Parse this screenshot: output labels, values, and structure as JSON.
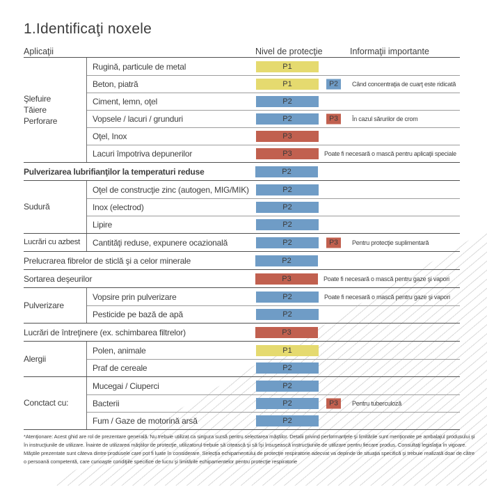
{
  "title": "1.Identificaţi noxele",
  "columns": {
    "applications": "Aplicaţii",
    "protection": "Nivel de protecţie",
    "info": "Informaţii importante"
  },
  "colors": {
    "p1": "#e5da6f",
    "p2": "#6f9cc6",
    "p3": "#c1604f"
  },
  "sections": [
    {
      "group": "Şlefuire\nTăiere\nPerforare",
      "rows": [
        {
          "label": "Rugină, particule de metal",
          "level": "P1"
        },
        {
          "label": "Beton, piatră",
          "level": "P1",
          "level2": "P2",
          "note": "Când concentraţia de cuarţ este ridicată"
        },
        {
          "label": "Ciment, lemn, oţel",
          "level": "P2"
        },
        {
          "label": "Vopsele / lacuri / grunduri",
          "level": "P2",
          "level2": "P3",
          "note": "În cazul sărurilor de crom"
        },
        {
          "label": "Oţel, Inox",
          "level": "P3"
        },
        {
          "label": "Lacuri împotriva depunerilor",
          "level": "P3",
          "note": "Poate fi necesară o mască pentru aplicaţii speciale"
        }
      ]
    },
    {
      "rows": [
        {
          "label": "Pulverizarea lubrifianţilor la temperaturi reduse",
          "level": "P2"
        }
      ]
    },
    {
      "group": "Sudură",
      "rows": [
        {
          "label": "Oţel de construcţie zinc (autogen, MIG/MIK)",
          "level": "P2"
        },
        {
          "label": "Inox (electrod)",
          "level": "P2"
        },
        {
          "label": "Lipire",
          "level": "P2"
        }
      ]
    },
    {
      "group": "Lucrări cu azbest",
      "rows": [
        {
          "label": "Cantităţi reduse, expunere ocazională",
          "level": "P2",
          "level2": "P3",
          "note": "Pentru protecţie suplimentară"
        }
      ]
    },
    {
      "rows": [
        {
          "label": "Prelucrarea fibrelor de sticlă şi a celor minerale",
          "level": "P2"
        }
      ]
    },
    {
      "rows": [
        {
          "label": "Sortarea deşeurilor",
          "level": "P3",
          "note": "Poate fi necesară o mască pentru gaze şi vapori"
        }
      ]
    },
    {
      "group": "Pulverizare",
      "rows": [
        {
          "label": "Vopsire prin pulverizare",
          "level": "P2",
          "note": "Poate fi necesară o mască pentru gaze şi vapori"
        },
        {
          "label": "Pesticide pe bază de apă",
          "level": "P2"
        }
      ]
    },
    {
      "rows": [
        {
          "label": "Lucrări de întreţinere (ex. schimbarea filtrelor)",
          "level": "P3"
        }
      ]
    },
    {
      "group": "Alergii",
      "rows": [
        {
          "label": "Polen, animale",
          "level": "P1"
        },
        {
          "label": "Praf de cereale",
          "level": "P2"
        }
      ]
    },
    {
      "group": "Conctact cu:",
      "rows": [
        {
          "label": "Mucegai / Ciuperci",
          "level": "P2"
        },
        {
          "label": "Bacterii",
          "level": "P2",
          "level2": "P3",
          "note": "Pentru tuberculoză"
        },
        {
          "label": "Fum / Gaze de motorină arsă",
          "level": "P2"
        }
      ]
    }
  ],
  "footnote": "*Atenţionare: Acest ghid are rol de prezentare generală. Nu trebuie utilizat ca singura sursă pentru selectarea măştilor. Detalii privind performanţele şi limitările sunt menţionate pe ambalajul produsului şi în instrucţiunile de utilizare. Înainte de utilizarea măştilor de protecţie, utilizatorul trebuie să citească şi să îşi însuşească instrucţiunile de utilizare pentru fiecare produs. Consultaţi legislaţia în vigoare. Măştile prezentate sunt câteva dintre produsele care pot fi luate în considerare. Selecţia echipamentului de protecţie respiratorie adecvat va depinde de situaţia specifică şi trebuie realizată doar de către o persoană competentă, care cunoaşte condiţiile specifice de lucru şi limitările echipamentelor pentru protecţie respiratorie"
}
